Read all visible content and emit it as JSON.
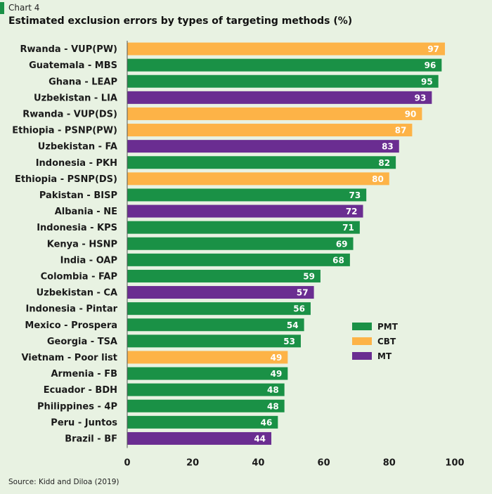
{
  "header": {
    "label": "Chart 4",
    "title": "Estimated exclusion errors by types of targeting methods (%)"
  },
  "source": "Source: Kidd and Diloa (2019)",
  "colors": {
    "PMT": "#1a9146",
    "CBT": "#fdb347",
    "MT": "#6a2d91"
  },
  "chart_data": {
    "type": "bar",
    "orientation": "horizontal",
    "title": "Estimated exclusion errors by types of targeting methods (%)",
    "xlabel": "",
    "ylabel": "",
    "xlim": [
      0,
      100
    ],
    "xticks": [
      0,
      20,
      40,
      60,
      80,
      100
    ],
    "grid": false,
    "legend_position": "right",
    "legend": [
      "PMT",
      "CBT",
      "MT"
    ],
    "categories": [
      "Rwanda - VUP(PW)",
      "Guatemala - MBS",
      "Ghana - LEAP",
      "Uzbekistan - LIA",
      "Rwanda - VUP(DS)",
      "Ethiopia - PSNP(PW)",
      "Uzbekistan - FA",
      "Indonesia - PKH",
      "Ethiopia - PSNP(DS)",
      "Pakistan - BISP",
      "Albania - NE",
      "Indonesia - KPS",
      "Kenya - HSNP",
      "India - OAP",
      "Colombia - FAP",
      "Uzbekistan - CA",
      "Indonesia - Pintar",
      "Mexico - Prospera",
      "Georgia - TSA",
      "Vietnam - Poor list",
      "Armenia - FB",
      "Ecuador - BDH",
      "Philippines - 4P",
      "Peru - Juntos",
      "Brazil - BF"
    ],
    "values": [
      97,
      96,
      95,
      93,
      90,
      87,
      83,
      82,
      80,
      73,
      72,
      71,
      69,
      68,
      59,
      57,
      56,
      54,
      53,
      49,
      49,
      48,
      48,
      46,
      44
    ],
    "types": [
      "CBT",
      "PMT",
      "PMT",
      "MT",
      "CBT",
      "CBT",
      "MT",
      "PMT",
      "CBT",
      "PMT",
      "MT",
      "PMT",
      "PMT",
      "PMT",
      "PMT",
      "MT",
      "PMT",
      "PMT",
      "PMT",
      "CBT",
      "PMT",
      "PMT",
      "PMT",
      "PMT",
      "MT"
    ]
  }
}
